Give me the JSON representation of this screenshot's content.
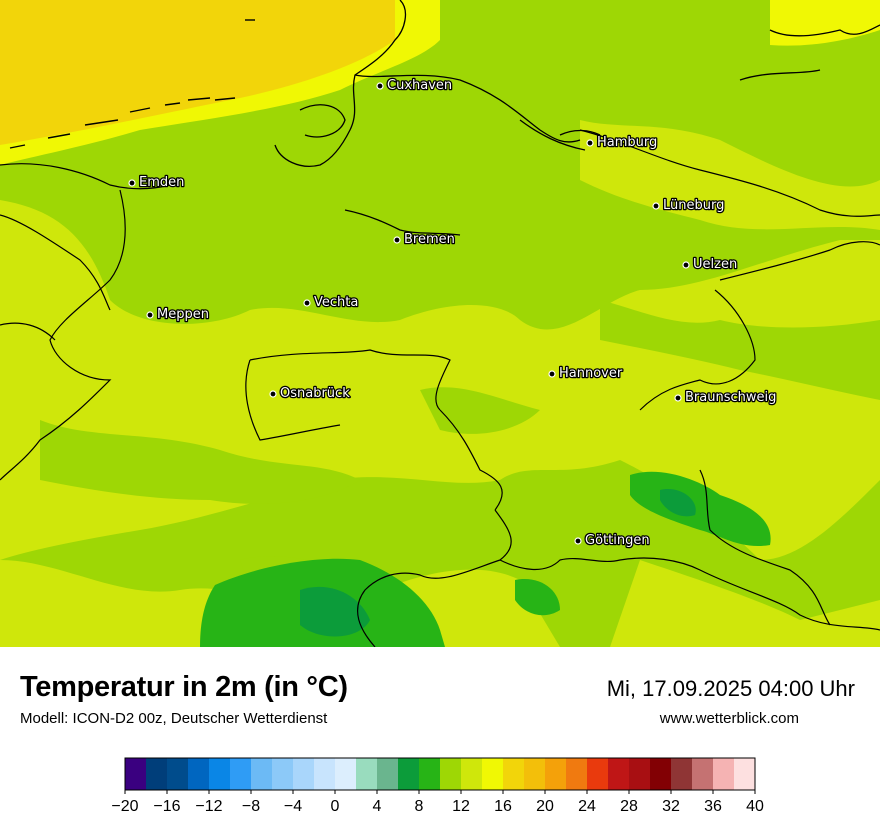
{
  "header": {
    "title": "Temperatur in 2m (in °C)",
    "subtitle": "Modell: ICON-D2 00z, Deutscher Wetterdienst",
    "datetime": "Mi, 17.09.2025 04:00 Uhr",
    "website": "www.wetterblick.com"
  },
  "cities": [
    {
      "name": "Cuxhaven"
    },
    {
      "name": "Hamburg"
    },
    {
      "name": "Emden"
    },
    {
      "name": "Lüneburg"
    },
    {
      "name": "Bremen"
    },
    {
      "name": "Uelzen"
    },
    {
      "name": "Vechta"
    },
    {
      "name": "Meppen"
    },
    {
      "name": "Hannover"
    },
    {
      "name": "Osnabrück"
    },
    {
      "name": "Braunschweig"
    },
    {
      "name": "Göttingen"
    }
  ],
  "colorbar": {
    "unit": "°C",
    "min": -20,
    "max": 40,
    "step": 2,
    "tick_labels": [
      "−20",
      "−16",
      "−12",
      "−8",
      "−4",
      "0",
      "4",
      "8",
      "12",
      "16",
      "20",
      "24",
      "28",
      "32",
      "36",
      "40"
    ],
    "colors": [
      "#3a0080",
      "#003e7a",
      "#004c8c",
      "#0066c0",
      "#0a86e6",
      "#2f9cf5",
      "#6cbaf5",
      "#8cc9f8",
      "#a9d6fb",
      "#c8e4fd",
      "#dceefd",
      "#99dcbe",
      "#6ab58e",
      "#0c9c3a",
      "#27b416",
      "#9ed705",
      "#cfe70b",
      "#f0f804",
      "#f2d50a",
      "#f3bf0a",
      "#f4a10a",
      "#f07a10",
      "#e93a0d",
      "#bf1616",
      "#a80f12",
      "#820004",
      "#8f3535",
      "#c57272",
      "#f5b3b3",
      "#fde0e0"
    ]
  },
  "map_colors": {
    "temp_18": "#f5d50d",
    "temp_16": "#f0f804",
    "temp_14": "#cfe70b",
    "temp_12": "#9ed705",
    "temp_10": "#27b416",
    "temp_8": "#0c9c3a"
  }
}
